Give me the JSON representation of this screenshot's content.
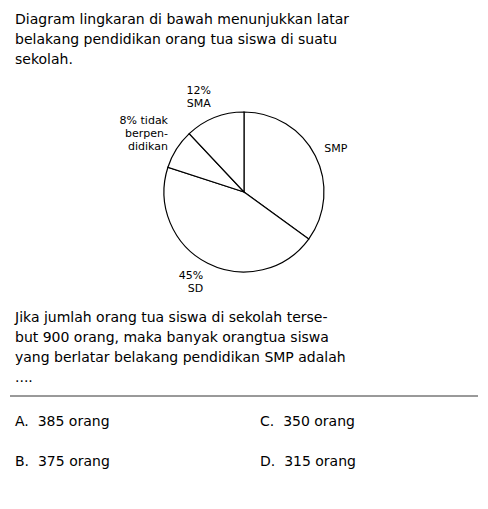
{
  "chart_data": {
    "type": "pie",
    "title": "Diagram lingkaran di bawah menunjukkan latar\nbelakang pendidikan orang tua siswa di suatu\nsekolah.",
    "categories": [
      "SMP",
      "45%\nSD",
      "8% tidak\nberpen-\ndidikan",
      "12%\nSMA"
    ],
    "values": [
      35,
      45,
      8,
      12
    ],
    "colors": [
      "#ffffff",
      "#ffffff",
      "#ffffff",
      "#ffffff"
    ],
    "annotations": [
      "Jika jumlah orang tua siswa di sekolah terse-\nbut 900 orang, maka banyak orangtua siswa\nyang berlatar belakang pendidikan SMP adalah\n....",
      "A.  385 orang",
      "B.  375 orang",
      "C.  350 orang",
      "D.  315 orang"
    ]
  }
}
